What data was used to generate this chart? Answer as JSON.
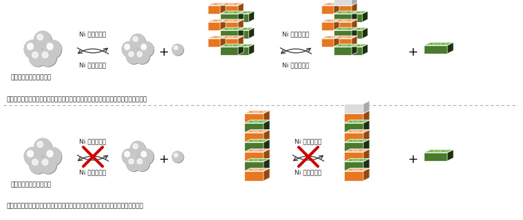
{
  "bg_color": "#ffffff",
  "orange": "#E87722",
  "green": "#4A7A2E",
  "white_block": "#DCDCDC",
  "sphere_color": "#C8C8C8",
  "sphere_dark": "#888888",
  "text_color": "#222222",
  "red_x_color": "#CC0000",
  "top_label": "非晶質ニ菃ケルナノ粒子",
  "bottom_label": "結晶性ニ菃ケルナノ粒子",
  "top_caption": "結晶度の低い非晶質ニ菃ケルナノ粒子からは、ニ菃ケル粒子の出入りが容易に起こる",
  "bottom_caption": "結晶度の高い結晶性ニ菃ケルナノ粒子からは、ニ菃ケル粒子の出入りが起こらない",
  "ni_release": "Ni 原子の放出",
  "ni_absorb": "Ni 原子の回収"
}
